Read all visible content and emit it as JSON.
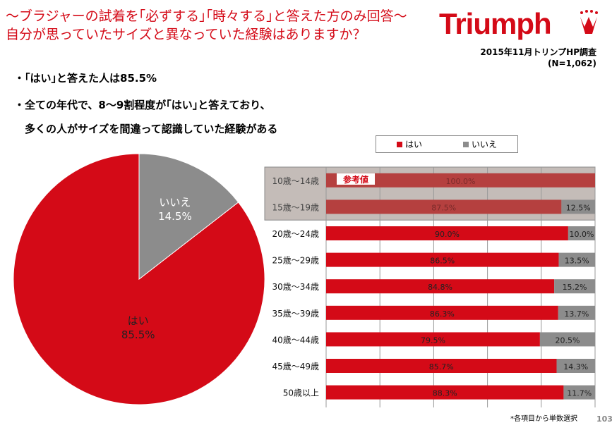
{
  "header": {
    "title_line1": "～ブラジャーの試着を｢必ずする｣｢時々する｣と答えた方のみ回答～",
    "title_line2": "自分が思っていたサイズと異なっていた経験はありますか？",
    "logo": "Triumph",
    "source": "2015年11月トリンプHP調査",
    "n": "(N=1,062)"
  },
  "bullets": [
    "・｢はい｣と答えた人は85.5%",
    "・全ての年代で、8～9割程度が｢はい｣と答えており、",
    "　多くの人がサイズを間違って認識していた経験がある"
  ],
  "footnote": "*各項目から単数選択",
  "page_number": "103",
  "colors": {
    "yes": "#d40a17",
    "no": "#8c8c8c",
    "reference_bg": "#c4bcb8",
    "reference_yes": "#b5403f"
  },
  "chart_data": [
    {
      "type": "pie",
      "slices": [
        {
          "label": "はい",
          "value": 85.5,
          "text": "85.5%"
        },
        {
          "label": "いいえ",
          "value": 14.5,
          "text": "14.5%"
        }
      ]
    },
    {
      "type": "bar",
      "stacked": true,
      "orientation": "horizontal",
      "xlim": [
        0,
        100
      ],
      "grid": true,
      "legend_position": "top",
      "series_names": [
        "はい",
        "いいえ"
      ],
      "reference_label": "参考値",
      "categories": [
        "10歳～14歳",
        "15歳～19歳",
        "20歳～24歳",
        "25歳～29歳",
        "30歳～34歳",
        "35歳～39歳",
        "40歳～44歳",
        "45歳～49歳",
        "50歳以上"
      ],
      "reference_rows": [
        0,
        1
      ],
      "yes": [
        100.0,
        87.5,
        90.0,
        86.5,
        84.8,
        86.3,
        79.5,
        85.7,
        88.3
      ],
      "no": [
        0,
        12.5,
        10.0,
        13.5,
        15.2,
        13.7,
        20.5,
        14.3,
        11.7
      ]
    }
  ]
}
